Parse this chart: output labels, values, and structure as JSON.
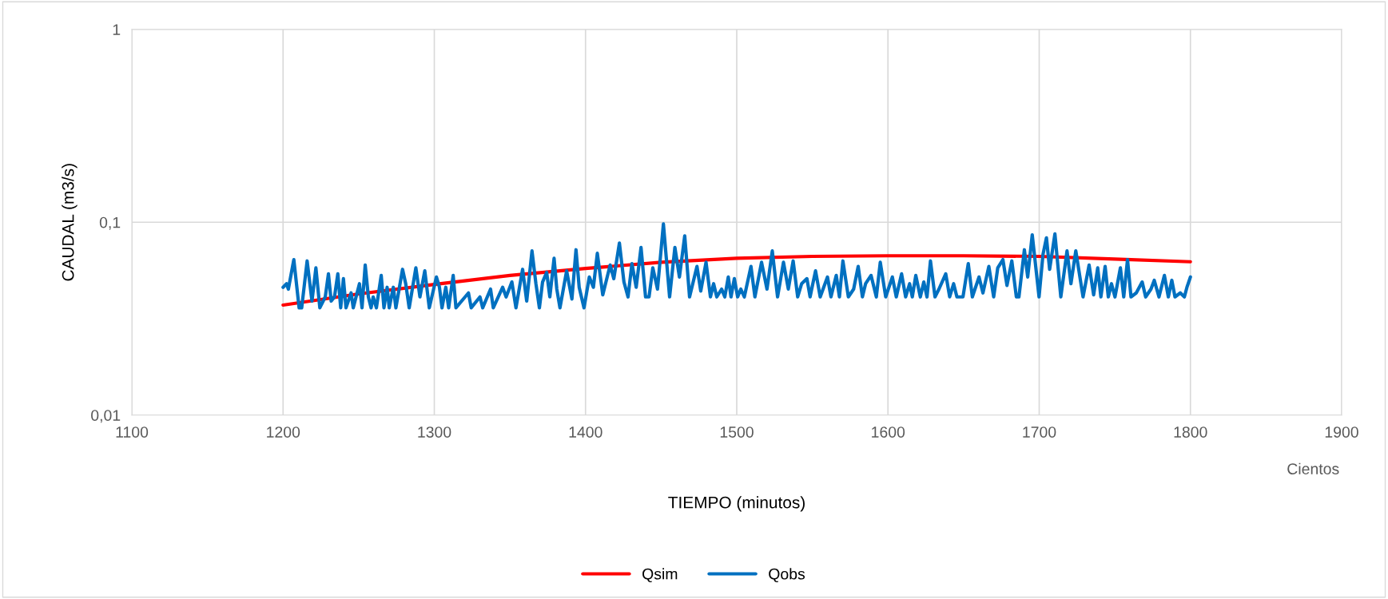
{
  "chart_data": {
    "type": "line",
    "xlabel": "TIEMPO (minutos)",
    "ylabel": "CAUDAL (m3/s)",
    "annotations": [
      "Cientos"
    ],
    "log": "y",
    "grid": true,
    "legend": "bottom",
    "marker": "none",
    "line_style": "solid",
    "xlim": [
      1100,
      1900
    ],
    "xticks": [
      1100,
      1200,
      1300,
      1400,
      1500,
      1600,
      1700,
      1800,
      1900
    ],
    "ylim": [
      0.01,
      1
    ],
    "yticks": [
      {
        "value": 0.01,
        "label": "0,01"
      },
      {
        "value": 0.1,
        "label": "0,1"
      },
      1
    ],
    "series": [
      {
        "name": "Qsim",
        "color": "#ff0000",
        "x": [
          1200,
          1250,
          1300,
          1350,
          1400,
          1450,
          1500,
          1550,
          1600,
          1650,
          1700,
          1750,
          1800
        ],
        "values": [
          0.0372,
          0.0425,
          0.0476,
          0.053,
          0.0576,
          0.062,
          0.065,
          0.0665,
          0.067,
          0.067,
          0.0665,
          0.0644,
          0.0624
        ]
      },
      {
        "name": "Qobs",
        "color": "#0070c0",
        "x": [
          1200.0,
          1202.3,
          1203.5,
          1207.1,
          1210.6,
          1212.3,
          1215.9,
          1219.1,
          1221.7,
          1224.3,
          1227.9,
          1230.0,
          1231.8,
          1234.0,
          1236.2,
          1238.1,
          1239.9,
          1241.6,
          1245.0,
          1246.4,
          1250.5,
          1252.2,
          1254.3,
          1256.4,
          1258.2,
          1259.6,
          1261.7,
          1264.9,
          1266.7,
          1268.8,
          1270.2,
          1272.9,
          1274.6,
          1279.0,
          1281.1,
          1283.4,
          1287.8,
          1290.5,
          1293.7,
          1296.7,
          1301.4,
          1303.4,
          1305.1,
          1307.6,
          1309.5,
          1312.5,
          1314.3,
          1322.6,
          1324.4,
          1330.2,
          1332.0,
          1337.2,
          1339.0,
          1345.2,
          1347.5,
          1351.3,
          1354.0,
          1358.4,
          1361.1,
          1364.6,
          1367.2,
          1369.5,
          1371.6,
          1374.3,
          1376.4,
          1379.2,
          1381.0,
          1383.1,
          1387.5,
          1391.0,
          1393.7,
          1395.8,
          1399.0,
          1402.5,
          1405.2,
          1407.8,
          1411.4,
          1416.3,
          1418.7,
          1422.4,
          1425.4,
          1428.1,
          1430.7,
          1433.5,
          1436.7,
          1439.7,
          1442.0,
          1444.5,
          1447.6,
          1451.5,
          1455.6,
          1459.1,
          1462.1,
          1465.6,
          1468.8,
          1473.7,
          1476.2,
          1479.7,
          1482.6,
          1484.7,
          1486.8,
          1490.0,
          1492.1,
          1494.4,
          1496.2,
          1498.4,
          1500.6,
          1502.7,
          1505.0,
          1509.4,
          1512.0,
          1516.4,
          1520.0,
          1523.5,
          1527.0,
          1530.9,
          1534.1,
          1537.3,
          1540.3,
          1542.9,
          1546.4,
          1548.5,
          1552.1,
          1555.2,
          1560.0,
          1562.3,
          1565.8,
          1567.9,
          1570.2,
          1573.8,
          1577.3,
          1580.3,
          1583.1,
          1585.2,
          1588.8,
          1592.3,
          1594.9,
          1598.5,
          1602.9,
          1605.5,
          1609.0,
          1611.7,
          1614.3,
          1616.1,
          1618.4,
          1621.4,
          1623.7,
          1625.8,
          1628.1,
          1631.1,
          1633.7,
          1638.2,
          1640.8,
          1643.4,
          1645.6,
          1649.6,
          1653.1,
          1655.8,
          1660.2,
          1662.8,
          1666.7,
          1669.9,
          1672.6,
          1676.0,
          1678.7,
          1681.9,
          1684.9,
          1686.6,
          1690.2,
          1692.4,
          1695.4,
          1699.9,
          1702.5,
          1704.8,
          1706.9,
          1710.4,
          1714.3,
          1718.4,
          1721.0,
          1724.2,
          1729.0,
          1733.0,
          1736.0,
          1738.7,
          1740.8,
          1743.6,
          1745.7,
          1747.8,
          1750.1,
          1753.7,
          1755.9,
          1758.4,
          1760.7,
          1764.2,
          1768.1,
          1770.4,
          1773.9,
          1776.1,
          1779.2,
          1782.8,
          1785.4,
          1787.7,
          1789.8,
          1793.3,
          1796.0,
          1797.7,
          1800.0
        ],
        "values": [
          0.046,
          0.048,
          0.045,
          0.064,
          0.036,
          0.036,
          0.063,
          0.039,
          0.058,
          0.036,
          0.041,
          0.054,
          0.039,
          0.041,
          0.054,
          0.036,
          0.051,
          0.036,
          0.043,
          0.036,
          0.048,
          0.036,
          0.06,
          0.041,
          0.036,
          0.041,
          0.036,
          0.053,
          0.036,
          0.046,
          0.036,
          0.046,
          0.036,
          0.057,
          0.048,
          0.036,
          0.058,
          0.041,
          0.056,
          0.036,
          0.052,
          0.046,
          0.036,
          0.046,
          0.036,
          0.053,
          0.036,
          0.043,
          0.036,
          0.041,
          0.036,
          0.045,
          0.036,
          0.046,
          0.041,
          0.049,
          0.036,
          0.057,
          0.039,
          0.071,
          0.048,
          0.036,
          0.049,
          0.055,
          0.041,
          0.065,
          0.045,
          0.036,
          0.056,
          0.04,
          0.072,
          0.046,
          0.036,
          0.052,
          0.046,
          0.069,
          0.042,
          0.06,
          0.051,
          0.078,
          0.049,
          0.041,
          0.061,
          0.046,
          0.074,
          0.041,
          0.041,
          0.058,
          0.045,
          0.098,
          0.041,
          0.074,
          0.052,
          0.085,
          0.041,
          0.059,
          0.044,
          0.062,
          0.041,
          0.048,
          0.041,
          0.045,
          0.041,
          0.052,
          0.041,
          0.051,
          0.041,
          0.045,
          0.041,
          0.059,
          0.041,
          0.062,
          0.045,
          0.071,
          0.041,
          0.062,
          0.045,
          0.063,
          0.041,
          0.048,
          0.051,
          0.041,
          0.056,
          0.041,
          0.052,
          0.041,
          0.053,
          0.041,
          0.063,
          0.041,
          0.045,
          0.059,
          0.041,
          0.048,
          0.053,
          0.041,
          0.062,
          0.041,
          0.052,
          0.041,
          0.054,
          0.041,
          0.048,
          0.041,
          0.053,
          0.041,
          0.049,
          0.041,
          0.063,
          0.041,
          0.045,
          0.054,
          0.041,
          0.048,
          0.041,
          0.041,
          0.061,
          0.041,
          0.052,
          0.043,
          0.059,
          0.041,
          0.058,
          0.064,
          0.047,
          0.063,
          0.041,
          0.041,
          0.072,
          0.052,
          0.086,
          0.041,
          0.068,
          0.083,
          0.057,
          0.087,
          0.041,
          0.071,
          0.048,
          0.071,
          0.041,
          0.06,
          0.042,
          0.058,
          0.041,
          0.059,
          0.041,
          0.048,
          0.041,
          0.058,
          0.041,
          0.064,
          0.041,
          0.043,
          0.049,
          0.041,
          0.045,
          0.05,
          0.041,
          0.053,
          0.041,
          0.05,
          0.041,
          0.043,
          0.041,
          0.046,
          0.052
        ]
      }
    ]
  }
}
